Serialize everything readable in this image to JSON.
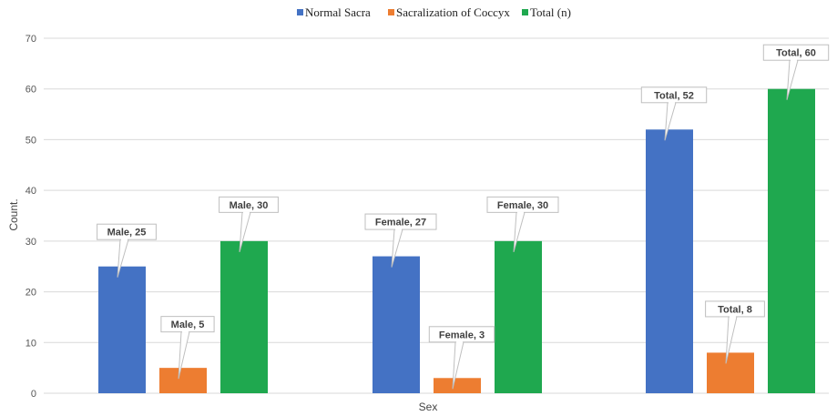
{
  "chart_data": {
    "type": "bar",
    "categories": [
      "Male",
      "Female",
      "Total"
    ],
    "series": [
      {
        "name": "Normal Sacra",
        "values": [
          25,
          27,
          52
        ],
        "color": "#4472c4"
      },
      {
        "name": "Sacralization of Coccyx",
        "values": [
          5,
          3,
          8
        ],
        "color": "#ed7d31"
      },
      {
        "name": "Total (n)",
        "values": [
          30,
          30,
          60
        ],
        "color": "#1fa84f"
      }
    ],
    "data_labels": [
      [
        "Male, 25",
        "Female, 27",
        "Total, 52"
      ],
      [
        "Male, 5",
        "Female, 3",
        "Total, 8"
      ],
      [
        "Male, 30",
        "Female, 30",
        "Total, 60"
      ]
    ],
    "title": "",
    "xlabel": "Sex",
    "ylabel": "Count.",
    "ylim": [
      0,
      70
    ],
    "yticks": [
      0,
      10,
      20,
      30,
      40,
      50,
      60,
      70
    ],
    "ytick_labels": [
      "0",
      "10",
      "20",
      "30",
      "40",
      "50",
      "60",
      "70"
    ],
    "grid": true,
    "legend_position": "top-center"
  }
}
